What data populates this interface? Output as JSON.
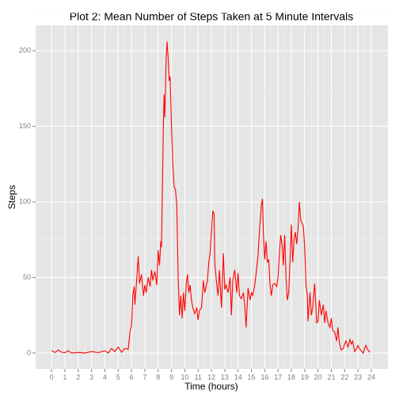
{
  "chart_data": {
    "type": "line",
    "title": "Plot 2: Mean Number of Steps Taken at 5 Minute Intervals",
    "x_label": "Time (hours)",
    "y_label": "Steps",
    "series": [
      {
        "name": "Steps",
        "color": "red",
        "x": [
          0,
          0.25,
          0.5,
          0.75,
          1,
          1.25,
          1.5,
          2,
          2.5,
          3,
          3.5,
          4,
          4.25,
          4.5,
          4.75,
          5,
          5.25,
          5.5,
          5.75,
          5.9,
          6,
          6.1,
          6.2,
          6.25,
          6.4,
          6.5,
          6.6,
          6.75,
          6.9,
          7,
          7.1,
          7.25,
          7.4,
          7.5,
          7.6,
          7.75,
          7.9,
          8,
          8.1,
          8.2,
          8.25,
          8.4,
          8.45,
          8.5,
          8.6,
          8.67,
          8.75,
          8.83,
          8.9,
          9,
          9.1,
          9.2,
          9.3,
          9.4,
          9.5,
          9.6,
          9.7,
          9.8,
          9.9,
          10,
          10.1,
          10.2,
          10.3,
          10.4,
          10.5,
          10.6,
          10.75,
          10.9,
          11,
          11.1,
          11.25,
          11.4,
          11.5,
          11.7,
          11.8,
          11.9,
          12,
          12.1,
          12.2,
          12.25,
          12.4,
          12.5,
          12.6,
          12.75,
          12.9,
          13,
          13.1,
          13.25,
          13.4,
          13.5,
          13.6,
          13.75,
          13.9,
          14,
          14.1,
          14.25,
          14.4,
          14.5,
          14.6,
          14.75,
          14.9,
          15,
          15.1,
          15.25,
          15.4,
          15.5,
          15.6,
          15.75,
          15.83,
          15.9,
          16,
          16.1,
          16.2,
          16.3,
          16.4,
          16.5,
          16.6,
          16.75,
          16.9,
          17,
          17.1,
          17.2,
          17.3,
          17.4,
          17.5,
          17.6,
          17.7,
          17.8,
          17.9,
          18,
          18.1,
          18.2,
          18.3,
          18.4,
          18.5,
          18.6,
          18.7,
          18.8,
          18.9,
          19,
          19.1,
          19.2,
          19.25,
          19.4,
          19.5,
          19.6,
          19.75,
          19.9,
          20,
          20.1,
          20.25,
          20.4,
          20.5,
          20.6,
          20.75,
          20.9,
          21,
          21.1,
          21.25,
          21.4,
          21.5,
          21.6,
          21.75,
          21.9,
          22,
          22.1,
          22.25,
          22.4,
          22.5,
          22.6,
          22.75,
          22.9,
          23,
          23.1,
          23.25,
          23.4,
          23.5,
          23.6,
          23.75,
          23.9
        ],
        "values": [
          1.7,
          0.3,
          2,
          0.5,
          0.2,
          1.5,
          0,
          0.4,
          0,
          1,
          0.3,
          1.5,
          0,
          3,
          1,
          4,
          0.5,
          3,
          2.5,
          15,
          18,
          38,
          44,
          32,
          50,
          64,
          46,
          52,
          38,
          45,
          40,
          50,
          44,
          55,
          48,
          54,
          45,
          68,
          58,
          74,
          70,
          155,
          171,
          156,
          195,
          206,
          195,
          180,
          183,
          150,
          125,
          110,
          108,
          98,
          50,
          25,
          38,
          23,
          40,
          28,
          45,
          52,
          40,
          45,
          35,
          30,
          26,
          30,
          22,
          28,
          30,
          48,
          40,
          48,
          60,
          66,
          80,
          94,
          92,
          60,
          45,
          38,
          55,
          30,
          66,
          42,
          45,
          40,
          50,
          25,
          48,
          55,
          40,
          53,
          38,
          36,
          40,
          32,
          17,
          43,
          35,
          40,
          38,
          45,
          56,
          65,
          80,
          98,
          102,
          80,
          62,
          74,
          60,
          62,
          45,
          38,
          45,
          46,
          44,
          50,
          65,
          78,
          72,
          58,
          78,
          50,
          35,
          40,
          60,
          85,
          60,
          75,
          80,
          72,
          82,
          100,
          88,
          86,
          84,
          70,
          45,
          38,
          21,
          40,
          25,
          30,
          46,
          20,
          21,
          35,
          25,
          32,
          20,
          28,
          20,
          17,
          23,
          15,
          14,
          8,
          17,
          7,
          2,
          3,
          6,
          8,
          4,
          9,
          6,
          8,
          1,
          3,
          5,
          3,
          1.5,
          0,
          3,
          5,
          2,
          0.5
        ]
      }
    ],
    "xlim": [
      -1.2,
      25.25
    ],
    "ylim": [
      -10.5,
      216.8
    ],
    "xticks": [
      0,
      1,
      2,
      3,
      4,
      5,
      6,
      7,
      8,
      9,
      10,
      11,
      12,
      13,
      14,
      15,
      16,
      17,
      18,
      19,
      20,
      21,
      22,
      23,
      24
    ],
    "yticks": [
      0,
      50,
      100,
      150,
      200
    ],
    "grid": true
  }
}
